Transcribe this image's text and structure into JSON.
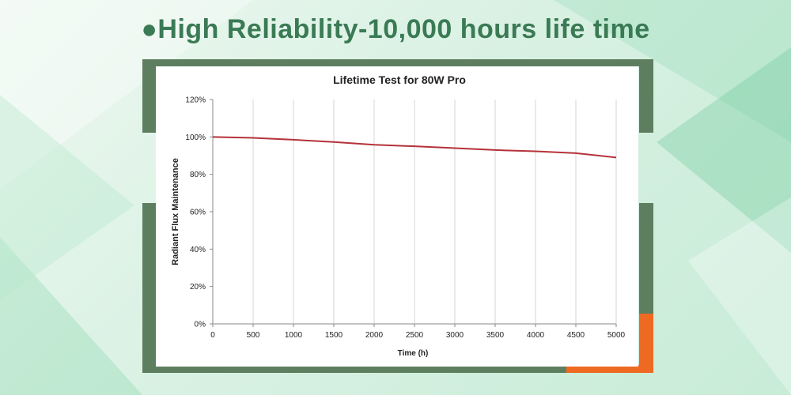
{
  "headline": "●High Reliability-10,000 hours life time",
  "colors": {
    "frame": "#5e7e60",
    "accent": "#ee6a22",
    "line": "#b5323a",
    "headline": "#3a7a55"
  },
  "chart_data": {
    "type": "line",
    "title": "Lifetime Test for 80W Pro",
    "xlabel": "Time (h)",
    "ylabel": "Radiant Flux Maintenance",
    "xlim": [
      0,
      5000
    ],
    "ylim": [
      0,
      120
    ],
    "xticks": [
      "0",
      "500",
      "1000",
      "1500",
      "2000",
      "2500",
      "3000",
      "3500",
      "4000",
      "4500",
      "5000"
    ],
    "yticks": [
      "0%",
      "20%",
      "40%",
      "60%",
      "80%",
      "100%",
      "120%"
    ],
    "grid": "vertical",
    "series": [
      {
        "x": [
          0,
          500,
          1000,
          1500,
          2000,
          2500,
          3000,
          3500,
          4000,
          4500,
          5000
        ],
        "y": [
          100,
          99.5,
          98.5,
          97.3,
          95.8,
          95.0,
          94.0,
          93.0,
          92.3,
          91.3,
          89.0
        ]
      }
    ]
  }
}
